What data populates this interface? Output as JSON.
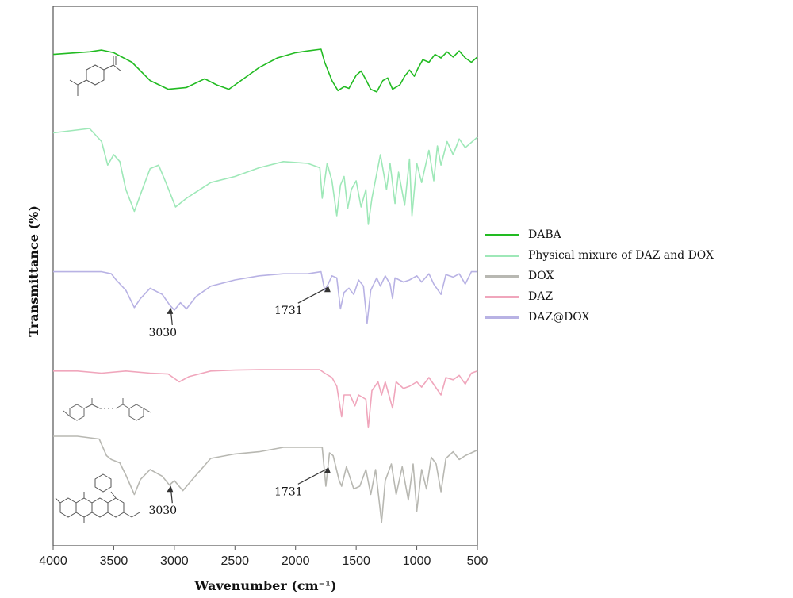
{
  "chart_data": {
    "type": "line",
    "xlabel": "Wavenumber (cm⁻¹)",
    "ylabel": "Transmittance (%)",
    "xlim": [
      4000,
      500
    ],
    "x_reversed": true,
    "xticks": [
      "4000",
      "3500",
      "3000",
      "2500",
      "2000",
      "1500",
      "1000",
      "500"
    ],
    "grid": false,
    "legend_position": "right",
    "series": [
      {
        "name": "DABA",
        "color": "#22bb22",
        "stack": 0,
        "points": [
          [
            4000,
            0.12
          ],
          [
            3700,
            0.06
          ],
          [
            3600,
            0.02
          ],
          [
            3500,
            0.08
          ],
          [
            3350,
            0.3
          ],
          [
            3200,
            0.72
          ],
          [
            3050,
            0.92
          ],
          [
            2900,
            0.88
          ],
          [
            2750,
            0.68
          ],
          [
            2650,
            0.82
          ],
          [
            2550,
            0.92
          ],
          [
            2450,
            0.72
          ],
          [
            2300,
            0.42
          ],
          [
            2150,
            0.2
          ],
          [
            2000,
            0.08
          ],
          [
            1900,
            0.04
          ],
          [
            1790,
            0.0
          ],
          [
            1760,
            0.3
          ],
          [
            1700,
            0.72
          ],
          [
            1650,
            0.95
          ],
          [
            1600,
            0.86
          ],
          [
            1560,
            0.9
          ],
          [
            1500,
            0.6
          ],
          [
            1460,
            0.5
          ],
          [
            1420,
            0.7
          ],
          [
            1380,
            0.92
          ],
          [
            1330,
            0.98
          ],
          [
            1280,
            0.72
          ],
          [
            1240,
            0.66
          ],
          [
            1200,
            0.92
          ],
          [
            1140,
            0.82
          ],
          [
            1100,
            0.62
          ],
          [
            1060,
            0.48
          ],
          [
            1020,
            0.62
          ],
          [
            990,
            0.44
          ],
          [
            950,
            0.24
          ],
          [
            900,
            0.3
          ],
          [
            850,
            0.12
          ],
          [
            800,
            0.2
          ],
          [
            750,
            0.06
          ],
          [
            700,
            0.18
          ],
          [
            650,
            0.04
          ],
          [
            600,
            0.2
          ],
          [
            550,
            0.3
          ],
          [
            500,
            0.18
          ]
        ]
      },
      {
        "name": "Physical mixure of DAZ and DOX",
        "color": "#9ee8b8",
        "stack": 1,
        "points": [
          [
            4000,
            0.05
          ],
          [
            3700,
            0.0
          ],
          [
            3600,
            0.15
          ],
          [
            3550,
            0.42
          ],
          [
            3500,
            0.3
          ],
          [
            3450,
            0.38
          ],
          [
            3400,
            0.7
          ],
          [
            3330,
            0.95
          ],
          [
            3270,
            0.72
          ],
          [
            3200,
            0.46
          ],
          [
            3130,
            0.42
          ],
          [
            3070,
            0.62
          ],
          [
            2990,
            0.9
          ],
          [
            2900,
            0.8
          ],
          [
            2700,
            0.62
          ],
          [
            2500,
            0.55
          ],
          [
            2300,
            0.45
          ],
          [
            2100,
            0.38
          ],
          [
            1900,
            0.4
          ],
          [
            1800,
            0.45
          ],
          [
            1780,
            0.8
          ],
          [
            1740,
            0.4
          ],
          [
            1700,
            0.6
          ],
          [
            1660,
            1.0
          ],
          [
            1630,
            0.65
          ],
          [
            1600,
            0.55
          ],
          [
            1570,
            0.92
          ],
          [
            1540,
            0.7
          ],
          [
            1500,
            0.6
          ],
          [
            1460,
            0.9
          ],
          [
            1420,
            0.7
          ],
          [
            1400,
            1.1
          ],
          [
            1370,
            0.8
          ],
          [
            1300,
            0.3
          ],
          [
            1250,
            0.7
          ],
          [
            1220,
            0.4
          ],
          [
            1180,
            0.86
          ],
          [
            1150,
            0.5
          ],
          [
            1100,
            0.88
          ],
          [
            1060,
            0.35
          ],
          [
            1040,
            1.0
          ],
          [
            1000,
            0.4
          ],
          [
            960,
            0.62
          ],
          [
            900,
            0.25
          ],
          [
            860,
            0.6
          ],
          [
            830,
            0.2
          ],
          [
            800,
            0.42
          ],
          [
            750,
            0.15
          ],
          [
            700,
            0.3
          ],
          [
            650,
            0.12
          ],
          [
            600,
            0.22
          ],
          [
            500,
            0.1
          ]
        ]
      },
      {
        "name": "DOX",
        "color": "#b8b8b2",
        "stack": 4,
        "points": [
          [
            4000,
            0.0
          ],
          [
            3800,
            0.0
          ],
          [
            3620,
            0.05
          ],
          [
            3560,
            0.35
          ],
          [
            3520,
            0.42
          ],
          [
            3450,
            0.48
          ],
          [
            3400,
            0.7
          ],
          [
            3330,
            1.05
          ],
          [
            3280,
            0.78
          ],
          [
            3200,
            0.6
          ],
          [
            3100,
            0.72
          ],
          [
            3040,
            0.88
          ],
          [
            3000,
            0.8
          ],
          [
            2930,
            0.98
          ],
          [
            2860,
            0.8
          ],
          [
            2700,
            0.4
          ],
          [
            2500,
            0.32
          ],
          [
            2300,
            0.28
          ],
          [
            2100,
            0.2
          ],
          [
            1900,
            0.2
          ],
          [
            1780,
            0.2
          ],
          [
            1750,
            0.9
          ],
          [
            1720,
            0.3
          ],
          [
            1690,
            0.35
          ],
          [
            1640,
            0.8
          ],
          [
            1620,
            0.9
          ],
          [
            1580,
            0.55
          ],
          [
            1520,
            0.95
          ],
          [
            1470,
            0.9
          ],
          [
            1420,
            0.6
          ],
          [
            1380,
            1.05
          ],
          [
            1340,
            0.6
          ],
          [
            1290,
            1.55
          ],
          [
            1260,
            0.8
          ],
          [
            1210,
            0.5
          ],
          [
            1170,
            1.05
          ],
          [
            1120,
            0.55
          ],
          [
            1070,
            1.15
          ],
          [
            1030,
            0.5
          ],
          [
            1000,
            1.35
          ],
          [
            960,
            0.6
          ],
          [
            920,
            0.95
          ],
          [
            880,
            0.38
          ],
          [
            840,
            0.5
          ],
          [
            800,
            1.0
          ],
          [
            760,
            0.4
          ],
          [
            700,
            0.28
          ],
          [
            650,
            0.42
          ],
          [
            600,
            0.35
          ],
          [
            550,
            0.3
          ],
          [
            500,
            0.25
          ]
        ]
      },
      {
        "name": "DAZ",
        "color": "#f0a6bc",
        "stack": 3,
        "points": [
          [
            4000,
            0.05
          ],
          [
            3800,
            0.05
          ],
          [
            3600,
            0.1
          ],
          [
            3400,
            0.05
          ],
          [
            3200,
            0.1
          ],
          [
            3050,
            0.12
          ],
          [
            2960,
            0.3
          ],
          [
            2880,
            0.18
          ],
          [
            2700,
            0.05
          ],
          [
            2500,
            0.03
          ],
          [
            2300,
            0.02
          ],
          [
            2100,
            0.02
          ],
          [
            1900,
            0.02
          ],
          [
            1800,
            0.02
          ],
          [
            1760,
            0.1
          ],
          [
            1700,
            0.2
          ],
          [
            1660,
            0.4
          ],
          [
            1620,
            1.1
          ],
          [
            1600,
            0.6
          ],
          [
            1550,
            0.6
          ],
          [
            1510,
            0.85
          ],
          [
            1480,
            0.6
          ],
          [
            1420,
            0.7
          ],
          [
            1400,
            1.35
          ],
          [
            1370,
            0.5
          ],
          [
            1320,
            0.3
          ],
          [
            1290,
            0.6
          ],
          [
            1260,
            0.3
          ],
          [
            1200,
            0.9
          ],
          [
            1170,
            0.3
          ],
          [
            1110,
            0.45
          ],
          [
            1060,
            0.4
          ],
          [
            1000,
            0.3
          ],
          [
            960,
            0.42
          ],
          [
            900,
            0.2
          ],
          [
            850,
            0.4
          ],
          [
            800,
            0.6
          ],
          [
            760,
            0.2
          ],
          [
            700,
            0.25
          ],
          [
            650,
            0.15
          ],
          [
            600,
            0.35
          ],
          [
            550,
            0.1
          ],
          [
            500,
            0.05
          ]
        ]
      },
      {
        "name": "DAZ@DOX",
        "color": "#b8b2e4",
        "stack": 2,
        "points": [
          [
            4000,
            0.05
          ],
          [
            3800,
            0.05
          ],
          [
            3600,
            0.05
          ],
          [
            3520,
            0.1
          ],
          [
            3480,
            0.25
          ],
          [
            3400,
            0.5
          ],
          [
            3330,
            0.92
          ],
          [
            3280,
            0.7
          ],
          [
            3200,
            0.45
          ],
          [
            3100,
            0.6
          ],
          [
            3040,
            0.85
          ],
          [
            3000,
            0.98
          ],
          [
            2950,
            0.8
          ],
          [
            2900,
            0.95
          ],
          [
            2820,
            0.65
          ],
          [
            2700,
            0.4
          ],
          [
            2500,
            0.25
          ],
          [
            2300,
            0.15
          ],
          [
            2100,
            0.1
          ],
          [
            1900,
            0.1
          ],
          [
            1790,
            0.05
          ],
          [
            1760,
            0.5
          ],
          [
            1731,
            0.35
          ],
          [
            1700,
            0.15
          ],
          [
            1660,
            0.2
          ],
          [
            1630,
            0.95
          ],
          [
            1600,
            0.55
          ],
          [
            1560,
            0.45
          ],
          [
            1520,
            0.6
          ],
          [
            1480,
            0.25
          ],
          [
            1440,
            0.4
          ],
          [
            1410,
            1.3
          ],
          [
            1380,
            0.5
          ],
          [
            1330,
            0.2
          ],
          [
            1300,
            0.4
          ],
          [
            1260,
            0.15
          ],
          [
            1220,
            0.35
          ],
          [
            1200,
            0.7
          ],
          [
            1180,
            0.2
          ],
          [
            1110,
            0.3
          ],
          [
            1060,
            0.25
          ],
          [
            1000,
            0.15
          ],
          [
            960,
            0.3
          ],
          [
            900,
            0.1
          ],
          [
            860,
            0.35
          ],
          [
            800,
            0.6
          ],
          [
            760,
            0.12
          ],
          [
            700,
            0.18
          ],
          [
            650,
            0.1
          ],
          [
            600,
            0.35
          ],
          [
            550,
            0.05
          ],
          [
            500,
            0.05
          ]
        ]
      }
    ],
    "annotations": [
      {
        "text": "3030",
        "series": "DAZ@DOX",
        "x": 3030
      },
      {
        "text": "1731",
        "series": "DAZ@DOX",
        "x": 1731
      },
      {
        "text": "3030",
        "series": "DOX",
        "x": 3030
      },
      {
        "text": "1731",
        "series": "DOX",
        "x": 1731
      }
    ],
    "structures": [
      "DABA",
      "DAZ",
      "DOX"
    ]
  }
}
